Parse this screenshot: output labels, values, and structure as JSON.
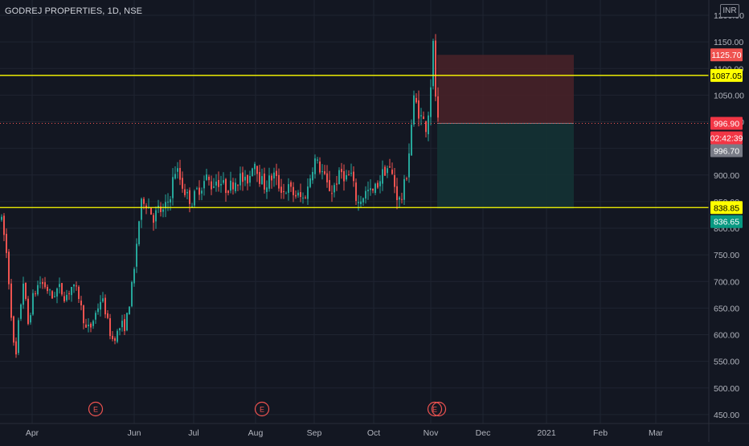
{
  "header": {
    "title": "GODREJ PROPERTIES, 1D, NSE",
    "currency": "INR"
  },
  "colors": {
    "background": "#131722",
    "grid": "#1f2431",
    "up": "#26a69a",
    "down": "#ef5350",
    "level_line": "#ffff00",
    "axis_text": "#b2b5be",
    "stop_zone": "#4a2228",
    "target_zone": "#143234",
    "last_price_label": "#f23645",
    "countdown_label": "#f23645",
    "prev_close_label": "#787b86",
    "target_label": "#089981"
  },
  "price_labels": {
    "stop": "1125.70",
    "level_high": "1087.05",
    "last_price": "996.90",
    "countdown": "02:42:39",
    "prev_close": "996.70",
    "level_low": "838.85",
    "target": "836.65"
  },
  "chart_data": {
    "type": "candlestick",
    "title": "GODREJ PROPERTIES, 1D, NSE",
    "y_axis": {
      "ticks": [
        450,
        500,
        550,
        600,
        650,
        700,
        750,
        800,
        850,
        900,
        950,
        1000,
        1050,
        1100,
        1150,
        1200
      ],
      "tick_labels": [
        "450.00",
        "500.00",
        "550.00",
        "600.00",
        "650.00",
        "700.00",
        "750.00",
        "800.00",
        "850.00",
        "900.00",
        "950.00",
        "1000.00",
        "1050.00",
        "1100.00",
        "1150.00",
        "1200.00"
      ],
      "range": [
        445,
        1205
      ],
      "position": "right"
    },
    "x_axis": {
      "labels": [
        "Apr",
        "Jun",
        "Jul",
        "Aug",
        "Sep",
        "Oct",
        "Nov",
        "Dec",
        "2021",
        "Feb",
        "Mar"
      ]
    },
    "horizontal_levels": [
      1087.05,
      838.85
    ],
    "last_price": 996.9,
    "position_box": {
      "entry": 996.9,
      "stop": 1125.7,
      "target": 836.65,
      "type": "short"
    },
    "earnings_markers": [
      "E",
      "E",
      "E"
    ],
    "series": [
      {
        "path": [
          [
            0,
            820
          ],
          [
            6,
            770
          ],
          [
            10,
            700
          ],
          [
            14,
            620
          ],
          [
            18,
            540
          ],
          [
            22,
            620
          ],
          [
            28,
            700
          ],
          [
            34,
            620
          ],
          [
            40,
            670
          ],
          [
            48,
            700
          ],
          [
            56,
            690
          ],
          [
            64,
            670
          ],
          [
            72,
            690
          ],
          [
            80,
            670
          ],
          [
            88,
            690
          ],
          [
            96,
            680
          ],
          [
            100,
            650
          ],
          [
            106,
            610
          ],
          [
            112,
            615
          ],
          [
            118,
            640
          ],
          [
            124,
            665
          ],
          [
            128,
            660
          ],
          [
            132,
            630
          ],
          [
            138,
            590
          ],
          [
            144,
            600
          ],
          [
            150,
            620
          ],
          [
            154,
            615
          ],
          [
            158,
            640
          ],
          [
            162,
            680
          ],
          [
            166,
            720
          ],
          [
            170,
            790
          ],
          [
            174,
            840
          ],
          [
            178,
            855
          ],
          [
            184,
            840
          ],
          [
            190,
            820
          ],
          [
            196,
            835
          ],
          [
            202,
            830
          ],
          [
            208,
            850
          ],
          [
            212,
            870
          ],
          [
            216,
            910
          ],
          [
            220,
            905
          ],
          [
            226,
            880
          ],
          [
            232,
            860
          ],
          [
            238,
            850
          ],
          [
            244,
            870
          ],
          [
            250,
            880
          ],
          [
            256,
            895
          ],
          [
            262,
            880
          ],
          [
            268,
            890
          ],
          [
            274,
            885
          ],
          [
            280,
            875
          ],
          [
            286,
            880
          ],
          [
            292,
            890
          ],
          [
            298,
            895
          ],
          [
            304,
            885
          ],
          [
            310,
            900
          ],
          [
            314,
            930
          ],
          [
            318,
            920
          ],
          [
            322,
            895
          ],
          [
            328,
            880
          ],
          [
            334,
            890
          ],
          [
            340,
            900
          ],
          [
            346,
            880
          ],
          [
            352,
            870
          ],
          [
            358,
            875
          ],
          [
            364,
            865
          ],
          [
            370,
            860
          ],
          [
            376,
            855
          ],
          [
            382,
            875
          ],
          [
            386,
            905
          ],
          [
            390,
            930
          ],
          [
            394,
            920
          ],
          [
            400,
            905
          ],
          [
            406,
            880
          ],
          [
            412,
            870
          ],
          [
            418,
            890
          ],
          [
            424,
            905
          ],
          [
            430,
            895
          ],
          [
            436,
            900
          ],
          [
            440,
            870
          ],
          [
            444,
            845
          ],
          [
            450,
            860
          ],
          [
            456,
            870
          ],
          [
            462,
            865
          ],
          [
            468,
            880
          ],
          [
            474,
            900
          ],
          [
            480,
            915
          ],
          [
            486,
            905
          ],
          [
            490,
            880
          ],
          [
            494,
            855
          ],
          [
            498,
            850
          ],
          [
            502,
            880
          ],
          [
            506,
            910
          ],
          [
            510,
            980
          ],
          [
            514,
            1040
          ],
          [
            518,
            1030
          ],
          [
            522,
            1010
          ],
          [
            526,
            1000
          ],
          [
            530,
            990
          ],
          [
            534,
            1050
          ],
          [
            538,
            1140
          ],
          [
            541,
            1050
          ],
          [
            544,
            996.9
          ]
        ]
      }
    ]
  }
}
